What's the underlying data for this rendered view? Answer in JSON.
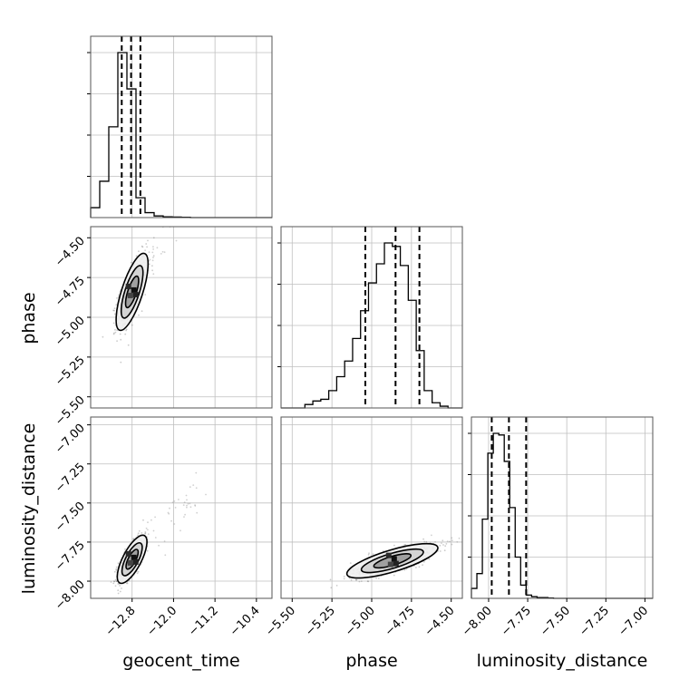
{
  "chart_data": {
    "type": "corner",
    "parameters": [
      "geocent_time",
      "phase",
      "luminosity_distance"
    ],
    "axes": {
      "geocent_time": {
        "label": "geocent_time",
        "range": [
          -13.6,
          -10.1
        ],
        "ticks": [
          -12.8,
          -12.0,
          -11.2,
          -10.4
        ],
        "tick_labels": [
          "−12.8",
          "−12.0",
          "−11.2",
          "−10.4"
        ]
      },
      "phase": {
        "label": "phase",
        "range": [
          -5.57,
          -4.43
        ],
        "ticks": [
          -5.5,
          -5.25,
          -5.0,
          -4.75,
          -4.5
        ],
        "tick_labels": [
          "−5.50",
          "−5.25",
          "−5.00",
          "−4.75",
          "−4.50"
        ]
      },
      "luminosity_distance": {
        "label": "luminosity_distance",
        "range": [
          -8.11,
          -6.95
        ],
        "ticks": [
          -8.0,
          -7.75,
          -7.5,
          -7.25,
          -7.0
        ],
        "tick_labels": [
          "−8.00",
          "−7.75",
          "−7.50",
          "−7.25",
          "−7.00"
        ]
      }
    },
    "histograms": [
      {
        "parameter": "geocent_time",
        "bin_edges": [
          -13.6,
          -13.425,
          -13.25,
          -13.075,
          -12.9,
          -12.725,
          -12.55,
          -12.375,
          -12.2,
          -12.025,
          -11.85,
          -11.675
        ],
        "counts": [
          0.06,
          0.22,
          0.55,
          1.0,
          0.78,
          0.12,
          0.03,
          0.01,
          0.005,
          0.003,
          0.002
        ],
        "quantile_lines": [
          -13.0,
          -12.82,
          -12.64
        ]
      },
      {
        "parameter": "phase",
        "bin_edges": [
          -5.42,
          -5.37,
          -5.32,
          -5.27,
          -5.22,
          -5.17,
          -5.12,
          -5.07,
          -5.02,
          -4.97,
          -4.92,
          -4.87,
          -4.82,
          -4.77,
          -4.72,
          -4.67,
          -4.62,
          -4.57,
          -4.52
        ],
        "counts": [
          0.02,
          0.04,
          0.05,
          0.1,
          0.18,
          0.27,
          0.4,
          0.56,
          0.72,
          0.83,
          0.95,
          0.93,
          0.82,
          0.62,
          0.33,
          0.1,
          0.03,
          0.01
        ],
        "quantile_lines": [
          -5.04,
          -4.85,
          -4.7
        ]
      },
      {
        "parameter": "luminosity_distance",
        "bin_edges": [
          -8.11,
          -8.075,
          -8.04,
          -8.005,
          -7.97,
          -7.935,
          -7.9,
          -7.865,
          -7.83,
          -7.795,
          -7.76,
          -7.725,
          -7.69,
          -7.655,
          -7.62,
          -7.585
        ],
        "counts": [
          0.06,
          0.15,
          0.48,
          0.88,
          1.0,
          0.99,
          0.83,
          0.55,
          0.25,
          0.08,
          0.02,
          0.01,
          0.005,
          0.005,
          0.002
        ],
        "quantile_lines": [
          -7.98,
          -7.87,
          -7.76
        ]
      }
    ],
    "scatter_panels": [
      {
        "x": "geocent_time",
        "y": "phase",
        "center": [
          -12.8,
          -4.84
        ],
        "std": [
          0.14,
          0.11
        ],
        "correlation": 0.72
      },
      {
        "x": "geocent_time",
        "y": "luminosity_distance",
        "center": [
          -12.8,
          -7.86
        ],
        "std": [
          0.13,
          0.07
        ],
        "correlation": 0.72
      },
      {
        "x": "phase",
        "y": "luminosity_distance",
        "center": [
          -4.87,
          -7.87
        ],
        "std": [
          0.13,
          0.05
        ],
        "correlation": 0.75
      }
    ],
    "grid": true
  }
}
